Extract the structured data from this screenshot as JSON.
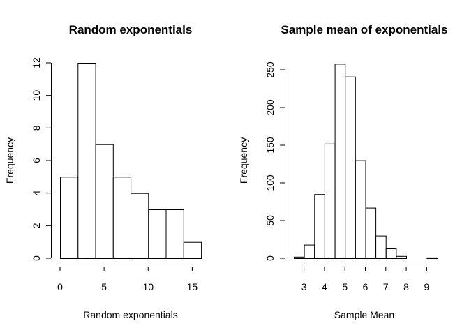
{
  "chart_data": [
    {
      "type": "bar",
      "title": "Random exponentials",
      "xlabel": "Random exponentials",
      "ylabel": "Frequency",
      "bins": [
        [
          0,
          2
        ],
        [
          2,
          4
        ],
        [
          4,
          6
        ],
        [
          6,
          8
        ],
        [
          8,
          10
        ],
        [
          10,
          12
        ],
        [
          12,
          14
        ],
        [
          14,
          16
        ]
      ],
      "values": [
        5,
        12,
        7,
        5,
        4,
        3,
        3,
        1
      ],
      "xlim": [
        0,
        16
      ],
      "ylim": [
        0,
        12
      ],
      "xticks": [
        0,
        5,
        10,
        15
      ],
      "yticks": [
        0,
        2,
        4,
        6,
        8,
        10,
        12
      ],
      "grid": false
    },
    {
      "type": "bar",
      "title": "Sample mean of exponentials",
      "xlabel": "Sample Mean",
      "ylabel": "Frequency",
      "bins": [
        [
          2.5,
          3
        ],
        [
          3,
          3.5
        ],
        [
          3.5,
          4
        ],
        [
          4,
          4.5
        ],
        [
          4.5,
          5
        ],
        [
          5,
          5.5
        ],
        [
          5.5,
          6
        ],
        [
          6,
          6.5
        ],
        [
          6.5,
          7
        ],
        [
          7,
          7.5
        ],
        [
          7.5,
          8
        ],
        [
          8,
          8.5
        ],
        [
          8.5,
          9
        ],
        [
          9,
          9.5
        ]
      ],
      "values": [
        2,
        18,
        85,
        152,
        258,
        241,
        130,
        67,
        30,
        13,
        3,
        0,
        0,
        1
      ],
      "xlim": [
        2.5,
        9.5
      ],
      "ylim": [
        0,
        250
      ],
      "xticks": [
        3,
        4,
        5,
        6,
        7,
        8,
        9
      ],
      "yticks": [
        0,
        50,
        100,
        150,
        200,
        250
      ],
      "grid": false
    }
  ]
}
